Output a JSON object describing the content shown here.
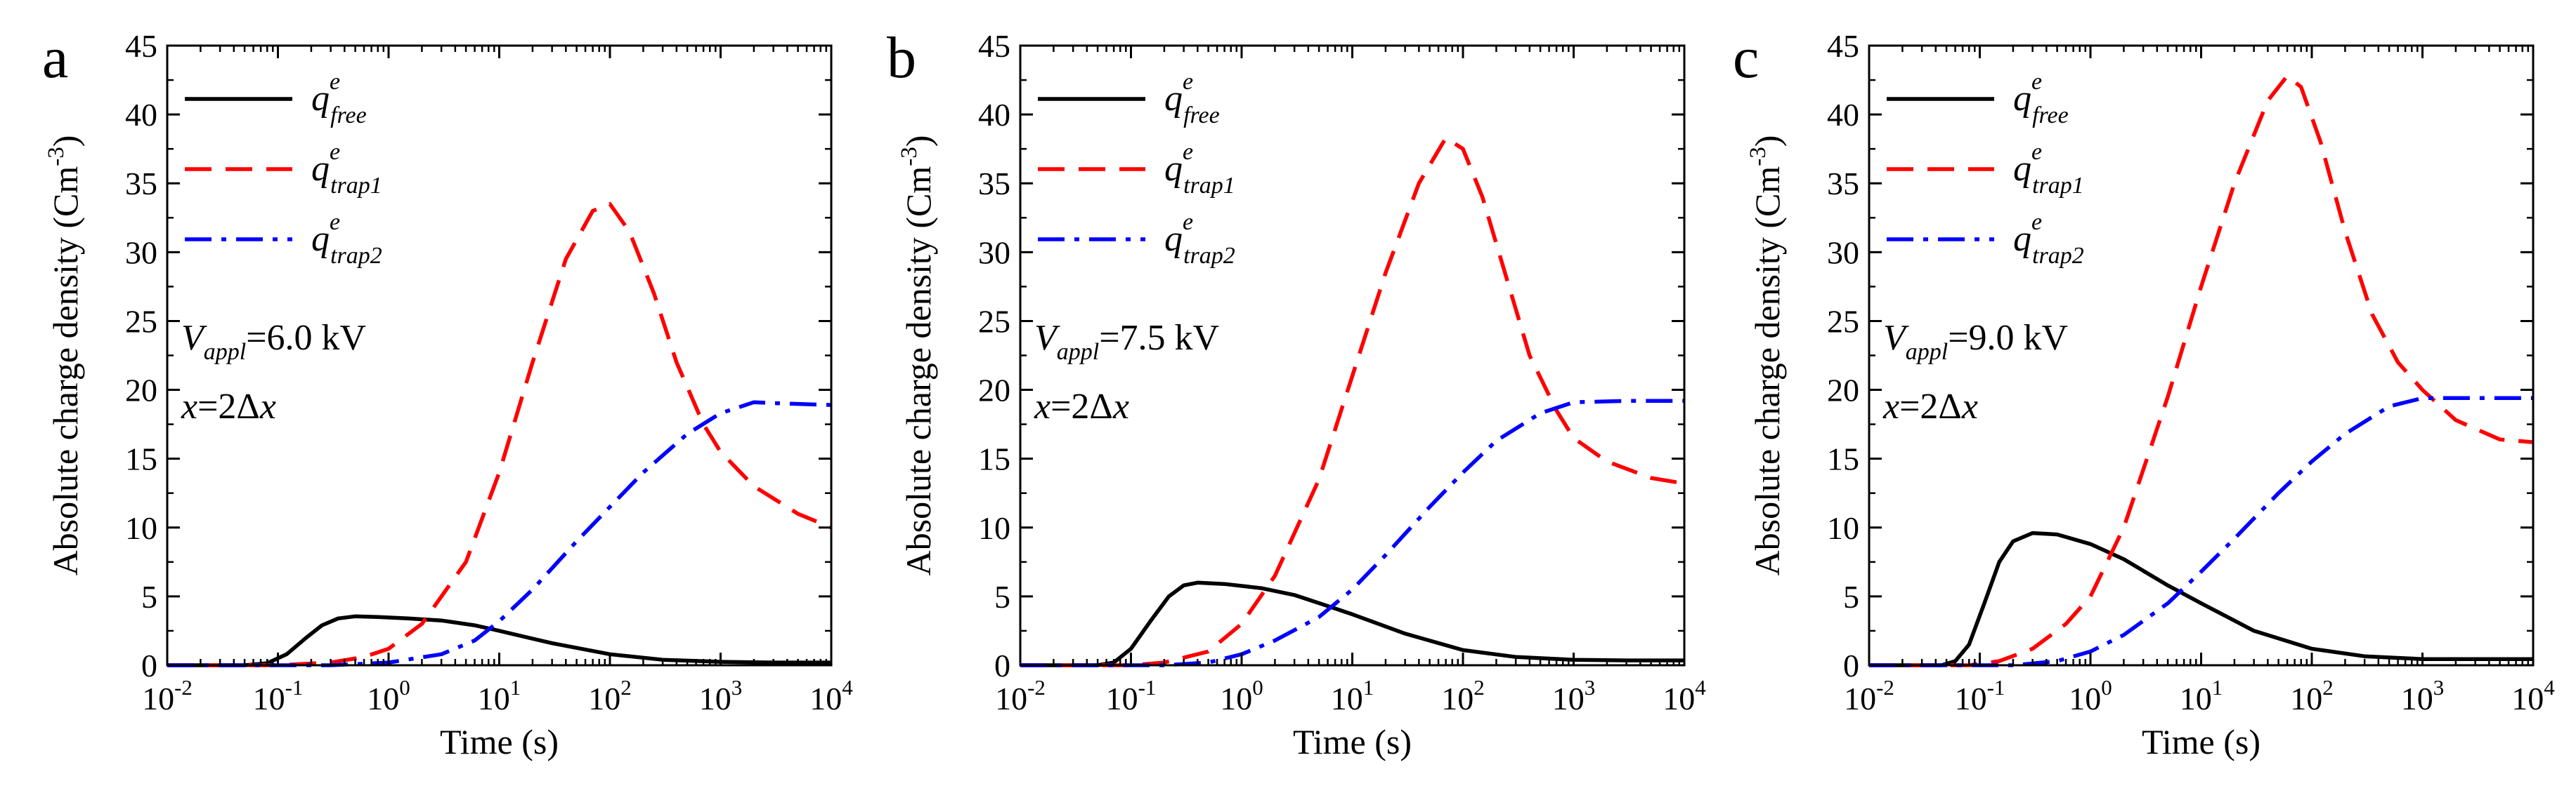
{
  "chart_data": [
    {
      "type": "line",
      "panel_label": "a",
      "xlabel": "Time (s)",
      "ylabel": "Absolute charge density (Cm",
      "ylabel_sup": "-3",
      "ylabel_close": ")",
      "xscale": "log",
      "xlim": [
        0.01,
        10000
      ],
      "ylim": [
        0,
        45
      ],
      "x_ticks": [
        {
          "base": "10",
          "exp": "-2"
        },
        {
          "base": "10",
          "exp": "-1"
        },
        {
          "base": "10",
          "exp": "0"
        },
        {
          "base": "10",
          "exp": "1"
        },
        {
          "base": "10",
          "exp": "2"
        },
        {
          "base": "10",
          "exp": "3"
        },
        {
          "base": "10",
          "exp": "4"
        }
      ],
      "y_ticks": [
        "0",
        "5",
        "10",
        "15",
        "20",
        "25",
        "30",
        "35",
        "40",
        "45"
      ],
      "annotation": {
        "v_sym": "V",
        "v_sub": "appl",
        "v_value": "=6.0 kV",
        "x_sym": "x",
        "x_value": "=2Δ",
        "x_tail": "x"
      },
      "legend_position": "top-left",
      "series": [
        {
          "name": "q_free",
          "label_main": "q",
          "label_sup": "e",
          "label_sub": "free",
          "color": "#000000",
          "dash": "solid",
          "points": [
            [
              0.01,
              0
            ],
            [
              0.05,
              0
            ],
            [
              0.08,
              0.15
            ],
            [
              0.12,
              0.8
            ],
            [
              0.18,
              2.0
            ],
            [
              0.25,
              2.9
            ],
            [
              0.35,
              3.4
            ],
            [
              0.5,
              3.55
            ],
            [
              0.8,
              3.5
            ],
            [
              1.5,
              3.4
            ],
            [
              3,
              3.25
            ],
            [
              6,
              2.9
            ],
            [
              10,
              2.5
            ],
            [
              30,
              1.6
            ],
            [
              100,
              0.8
            ],
            [
              300,
              0.4
            ],
            [
              1000,
              0.25
            ],
            [
              3000,
              0.2
            ],
            [
              10000,
              0.2
            ]
          ]
        },
        {
          "name": "q_trap1",
          "label_main": "q",
          "label_sup": "e",
          "label_sub": "trap1",
          "color": "#ff0000",
          "dash": "dashed",
          "points": [
            [
              0.01,
              0
            ],
            [
              0.1,
              0
            ],
            [
              0.3,
              0.2
            ],
            [
              0.6,
              0.6
            ],
            [
              1,
              1.2
            ],
            [
              2,
              3
            ],
            [
              5,
              7.5
            ],
            [
              10,
              14
            ],
            [
              20,
              22
            ],
            [
              40,
              29.5
            ],
            [
              70,
              33
            ],
            [
              100,
              33.5
            ],
            [
              150,
              31.5
            ],
            [
              250,
              27
            ],
            [
              400,
              22
            ],
            [
              700,
              17.5
            ],
            [
              1000,
              15.5
            ],
            [
              2000,
              13
            ],
            [
              5000,
              11
            ],
            [
              10000,
              10
            ]
          ]
        },
        {
          "name": "q_trap2",
          "label_main": "q",
          "label_sup": "e",
          "label_sub": "trap2",
          "color": "#0000ff",
          "dash": "dashdot",
          "points": [
            [
              0.01,
              0
            ],
            [
              0.3,
              0
            ],
            [
              1,
              0.2
            ],
            [
              3,
              0.8
            ],
            [
              6,
              1.8
            ],
            [
              10,
              3.2
            ],
            [
              20,
              5.5
            ],
            [
              50,
              9
            ],
            [
              100,
              11.5
            ],
            [
              200,
              14
            ],
            [
              500,
              16.8
            ],
            [
              1000,
              18.3
            ],
            [
              2000,
              19.1
            ],
            [
              4000,
              19
            ],
            [
              10000,
              18.9
            ]
          ]
        }
      ]
    },
    {
      "type": "line",
      "panel_label": "b",
      "xlabel": "Time (s)",
      "ylabel": "Absolute charge density (Cm",
      "ylabel_sup": "-3",
      "ylabel_close": ")",
      "xscale": "log",
      "xlim": [
        0.01,
        10000
      ],
      "ylim": [
        0,
        45
      ],
      "x_ticks": [
        {
          "base": "10",
          "exp": "-2"
        },
        {
          "base": "10",
          "exp": "-1"
        },
        {
          "base": "10",
          "exp": "0"
        },
        {
          "base": "10",
          "exp": "1"
        },
        {
          "base": "10",
          "exp": "2"
        },
        {
          "base": "10",
          "exp": "3"
        },
        {
          "base": "10",
          "exp": "4"
        }
      ],
      "y_ticks": [
        "0",
        "5",
        "10",
        "15",
        "20",
        "25",
        "30",
        "35",
        "40",
        "45"
      ],
      "annotation": {
        "v_sym": "V",
        "v_sub": "appl",
        "v_value": "=7.5 kV",
        "x_sym": "x",
        "x_value": "=2Δ",
        "x_tail": "x"
      },
      "legend_position": "top-left",
      "series": [
        {
          "name": "q_free",
          "label_main": "q",
          "label_sup": "e",
          "label_sub": "free",
          "color": "#000000",
          "dash": "solid",
          "points": [
            [
              0.01,
              0
            ],
            [
              0.05,
              0
            ],
            [
              0.07,
              0.2
            ],
            [
              0.1,
              1.2
            ],
            [
              0.15,
              3.2
            ],
            [
              0.22,
              5.0
            ],
            [
              0.3,
              5.8
            ],
            [
              0.4,
              6.0
            ],
            [
              0.7,
              5.9
            ],
            [
              1.5,
              5.6
            ],
            [
              3,
              5.1
            ],
            [
              6,
              4.3
            ],
            [
              10,
              3.7
            ],
            [
              30,
              2.3
            ],
            [
              100,
              1.1
            ],
            [
              300,
              0.6
            ],
            [
              1000,
              0.4
            ],
            [
              3000,
              0.35
            ],
            [
              10000,
              0.35
            ]
          ]
        },
        {
          "name": "q_trap1",
          "label_main": "q",
          "label_sup": "e",
          "label_sub": "trap1",
          "color": "#ff0000",
          "dash": "dashed",
          "points": [
            [
              0.01,
              0
            ],
            [
              0.1,
              0
            ],
            [
              0.2,
              0.2
            ],
            [
              0.5,
              1
            ],
            [
              1,
              3
            ],
            [
              2,
              6.5
            ],
            [
              5,
              13.5
            ],
            [
              10,
              21
            ],
            [
              20,
              28.5
            ],
            [
              40,
              35
            ],
            [
              70,
              38.3
            ],
            [
              100,
              37.5
            ],
            [
              150,
              34
            ],
            [
              250,
              28
            ],
            [
              400,
              22.5
            ],
            [
              700,
              18.5
            ],
            [
              1000,
              16.5
            ],
            [
              2000,
              14.8
            ],
            [
              5000,
              13.6
            ],
            [
              10000,
              13.2
            ]
          ]
        },
        {
          "name": "q_trap2",
          "label_main": "q",
          "label_sup": "e",
          "label_sub": "trap2",
          "color": "#0000ff",
          "dash": "dashdot",
          "points": [
            [
              0.01,
              0
            ],
            [
              0.2,
              0
            ],
            [
              0.5,
              0.2
            ],
            [
              1,
              0.8
            ],
            [
              2,
              1.8
            ],
            [
              5,
              3.5
            ],
            [
              10,
              5.5
            ],
            [
              20,
              8
            ],
            [
              50,
              11.5
            ],
            [
              100,
              14
            ],
            [
              200,
              16.3
            ],
            [
              500,
              18.3
            ],
            [
              1000,
              19.1
            ],
            [
              3000,
              19.2
            ],
            [
              10000,
              19.2
            ]
          ]
        }
      ]
    },
    {
      "type": "line",
      "panel_label": "c",
      "xlabel": "Time (s)",
      "ylabel": "Absolute charge density (Cm",
      "ylabel_sup": "-3",
      "ylabel_close": ")",
      "xscale": "log",
      "xlim": [
        0.01,
        10000
      ],
      "ylim": [
        0,
        45
      ],
      "x_ticks": [
        {
          "base": "10",
          "exp": "-2"
        },
        {
          "base": "10",
          "exp": "-1"
        },
        {
          "base": "10",
          "exp": "0"
        },
        {
          "base": "10",
          "exp": "1"
        },
        {
          "base": "10",
          "exp": "2"
        },
        {
          "base": "10",
          "exp": "3"
        },
        {
          "base": "10",
          "exp": "4"
        }
      ],
      "y_ticks": [
        "0",
        "5",
        "10",
        "15",
        "20",
        "25",
        "30",
        "35",
        "40",
        "45"
      ],
      "annotation": {
        "v_sym": "V",
        "v_sub": "appl",
        "v_value": "=9.0 kV",
        "x_sym": "x",
        "x_value": "=2Δ",
        "x_tail": "x"
      },
      "legend_position": "top-left",
      "series": [
        {
          "name": "q_free",
          "label_main": "q",
          "label_sup": "e",
          "label_sub": "free",
          "color": "#000000",
          "dash": "solid",
          "points": [
            [
              0.01,
              0
            ],
            [
              0.045,
              0
            ],
            [
              0.06,
              0.3
            ],
            [
              0.08,
              1.5
            ],
            [
              0.11,
              4.5
            ],
            [
              0.15,
              7.5
            ],
            [
              0.2,
              9.0
            ],
            [
              0.3,
              9.6
            ],
            [
              0.5,
              9.5
            ],
            [
              1,
              8.8
            ],
            [
              2,
              7.7
            ],
            [
              5,
              5.8
            ],
            [
              10,
              4.5
            ],
            [
              30,
              2.5
            ],
            [
              100,
              1.2
            ],
            [
              300,
              0.65
            ],
            [
              1000,
              0.45
            ],
            [
              3000,
              0.45
            ],
            [
              10000,
              0.45
            ]
          ]
        },
        {
          "name": "q_trap1",
          "label_main": "q",
          "label_sup": "e",
          "label_sub": "trap1",
          "color": "#ff0000",
          "dash": "dashed",
          "points": [
            [
              0.01,
              0
            ],
            [
              0.08,
              0
            ],
            [
              0.15,
              0.3
            ],
            [
              0.3,
              1.2
            ],
            [
              0.6,
              3
            ],
            [
              1,
              5
            ],
            [
              2,
              10
            ],
            [
              5,
              19.5
            ],
            [
              10,
              27.5
            ],
            [
              20,
              35
            ],
            [
              40,
              41
            ],
            [
              60,
              42.8
            ],
            [
              80,
              42
            ],
            [
              120,
              38
            ],
            [
              200,
              31.5
            ],
            [
              350,
              25.5
            ],
            [
              600,
              22
            ],
            [
              1000,
              20
            ],
            [
              2000,
              17.8
            ],
            [
              5000,
              16.4
            ],
            [
              10000,
              16.2
            ]
          ]
        },
        {
          "name": "q_trap2",
          "label_main": "q",
          "label_sup": "e",
          "label_sub": "trap2",
          "color": "#0000ff",
          "dash": "dashdot",
          "points": [
            [
              0.01,
              0
            ],
            [
              0.2,
              0
            ],
            [
              0.5,
              0.3
            ],
            [
              1,
              1
            ],
            [
              2,
              2.2
            ],
            [
              5,
              4.5
            ],
            [
              10,
              6.8
            ],
            [
              20,
              9.2
            ],
            [
              50,
              12.5
            ],
            [
              100,
              14.8
            ],
            [
              200,
              16.8
            ],
            [
              500,
              18.8
            ],
            [
              1000,
              19.4
            ],
            [
              3000,
              19.4
            ],
            [
              10000,
              19.4
            ]
          ]
        }
      ]
    }
  ]
}
